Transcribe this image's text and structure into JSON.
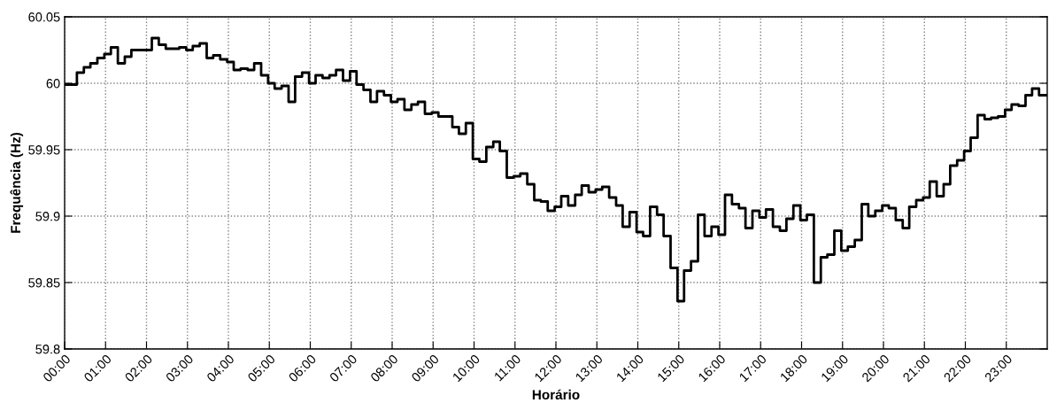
{
  "chart_data": {
    "type": "step",
    "xlabel": "Horário",
    "ylabel": "Frequência (Hz)",
    "color": "#000000",
    "grid": true,
    "xlim": [
      0,
      24
    ],
    "ylim": [
      59.8,
      60.05
    ],
    "xticks": [
      {
        "value": 0,
        "label": "00:00"
      },
      {
        "value": 1,
        "label": "01:00"
      },
      {
        "value": 2,
        "label": "02:00"
      },
      {
        "value": 3,
        "label": "03:00"
      },
      {
        "value": 4,
        "label": "04:00"
      },
      {
        "value": 5,
        "label": "05:00"
      },
      {
        "value": 6,
        "label": "06:00"
      },
      {
        "value": 7,
        "label": "07:00"
      },
      {
        "value": 8,
        "label": "08:00"
      },
      {
        "value": 9,
        "label": "09:00"
      },
      {
        "value": 10,
        "label": "10:00"
      },
      {
        "value": 11,
        "label": "11:00"
      },
      {
        "value": 12,
        "label": "12:00"
      },
      {
        "value": 13,
        "label": "13:00"
      },
      {
        "value": 14,
        "label": "14:00"
      },
      {
        "value": 15,
        "label": "15:00"
      },
      {
        "value": 16,
        "label": "16:00"
      },
      {
        "value": 17,
        "label": "17:00"
      },
      {
        "value": 18,
        "label": "18:00"
      },
      {
        "value": 19,
        "label": "19:00"
      },
      {
        "value": 20,
        "label": "20:00"
      },
      {
        "value": 21,
        "label": "21:00"
      },
      {
        "value": 22,
        "label": "22:00"
      },
      {
        "value": 23,
        "label": "23:00"
      }
    ],
    "yticks": [
      59.8,
      59.85,
      59.9,
      59.95,
      60,
      60.05
    ],
    "x": [
      0,
      0.3,
      0.47,
      0.63,
      0.8,
      0.97,
      1.13,
      1.3,
      1.47,
      1.63,
      1.8,
      1.97,
      2.13,
      2.3,
      2.47,
      2.63,
      2.8,
      2.97,
      3.13,
      3.3,
      3.47,
      3.63,
      3.8,
      3.97,
      4.13,
      4.3,
      4.47,
      4.63,
      4.8,
      4.97,
      5.13,
      5.3,
      5.47,
      5.63,
      5.8,
      5.97,
      6.13,
      6.3,
      6.47,
      6.63,
      6.8,
      6.97,
      7.13,
      7.3,
      7.47,
      7.63,
      7.8,
      7.97,
      8.13,
      8.3,
      8.47,
      8.63,
      8.8,
      8.97,
      9.13,
      9.3,
      9.47,
      9.63,
      9.8,
      9.97,
      10.13,
      10.3,
      10.47,
      10.63,
      10.8,
      10.97,
      11.13,
      11.3,
      11.47,
      11.63,
      11.8,
      11.97,
      12.13,
      12.3,
      12.47,
      12.63,
      12.8,
      12.97,
      13.13,
      13.3,
      13.47,
      13.63,
      13.8,
      13.97,
      14.13,
      14.3,
      14.47,
      14.63,
      14.8,
      14.97,
      15.13,
      15.3,
      15.47,
      15.63,
      15.8,
      15.97,
      16.13,
      16.3,
      16.47,
      16.63,
      16.8,
      16.97,
      17.13,
      17.3,
      17.47,
      17.63,
      17.8,
      17.97,
      18.13,
      18.3,
      18.47,
      18.63,
      18.8,
      18.97,
      19.13,
      19.3,
      19.47,
      19.63,
      19.8,
      19.97,
      20.13,
      20.3,
      20.47,
      20.63,
      20.8,
      20.97,
      21.13,
      21.3,
      21.47,
      21.63,
      21.8,
      21.97,
      22.13,
      22.3,
      22.47,
      22.63,
      22.8,
      22.97,
      23.13,
      23.3,
      23.47,
      23.63,
      23.8,
      24
    ],
    "values": [
      59.999,
      60.008,
      60.012,
      60.015,
      60.019,
      60.022,
      60.027,
      60.015,
      60.02,
      60.025,
      60.025,
      60.025,
      60.034,
      60.029,
      60.026,
      60.026,
      60.027,
      60.025,
      60.028,
      60.03,
      60.019,
      60.021,
      60.018,
      60.016,
      60.01,
      60.011,
      60.01,
      60.015,
      60.006,
      60.0,
      59.996,
      59.998,
      59.986,
      60.005,
      60.008,
      60.0,
      60.006,
      60.004,
      60.006,
      60.01,
      60.002,
      60.009,
      59.999,
      59.995,
      59.986,
      59.994,
      59.991,
      59.986,
      59.988,
      59.98,
      59.984,
      59.986,
      59.977,
      59.978,
      59.975,
      59.975,
      59.967,
      59.962,
      59.97,
      59.943,
      59.941,
      59.952,
      59.956,
      59.949,
      59.929,
      59.93,
      59.932,
      59.924,
      59.912,
      59.911,
      59.904,
      59.907,
      59.915,
      59.908,
      59.916,
      59.923,
      59.918,
      59.92,
      59.922,
      59.914,
      59.908,
      59.892,
      59.903,
      59.888,
      59.885,
      59.907,
      59.901,
      59.885,
      59.861,
      59.836,
      59.859,
      59.866,
      59.901,
      59.885,
      59.892,
      59.886,
      59.916,
      59.909,
      59.906,
      59.891,
      59.904,
      59.899,
      59.905,
      59.892,
      59.889,
      59.898,
      59.908,
      59.897,
      59.901,
      59.85,
      59.869,
      59.871,
      59.889,
      59.874,
      59.877,
      59.882,
      59.909,
      59.9,
      59.904,
      59.908,
      59.906,
      59.897,
      59.891,
      59.907,
      59.912,
      59.914,
      59.926,
      59.915,
      59.924,
      59.938,
      59.942,
      59.949,
      59.959,
      59.976,
      59.973,
      59.974,
      59.975,
      59.98,
      59.984,
      59.983,
      59.991,
      59.996,
      59.991,
      59.991
    ]
  }
}
